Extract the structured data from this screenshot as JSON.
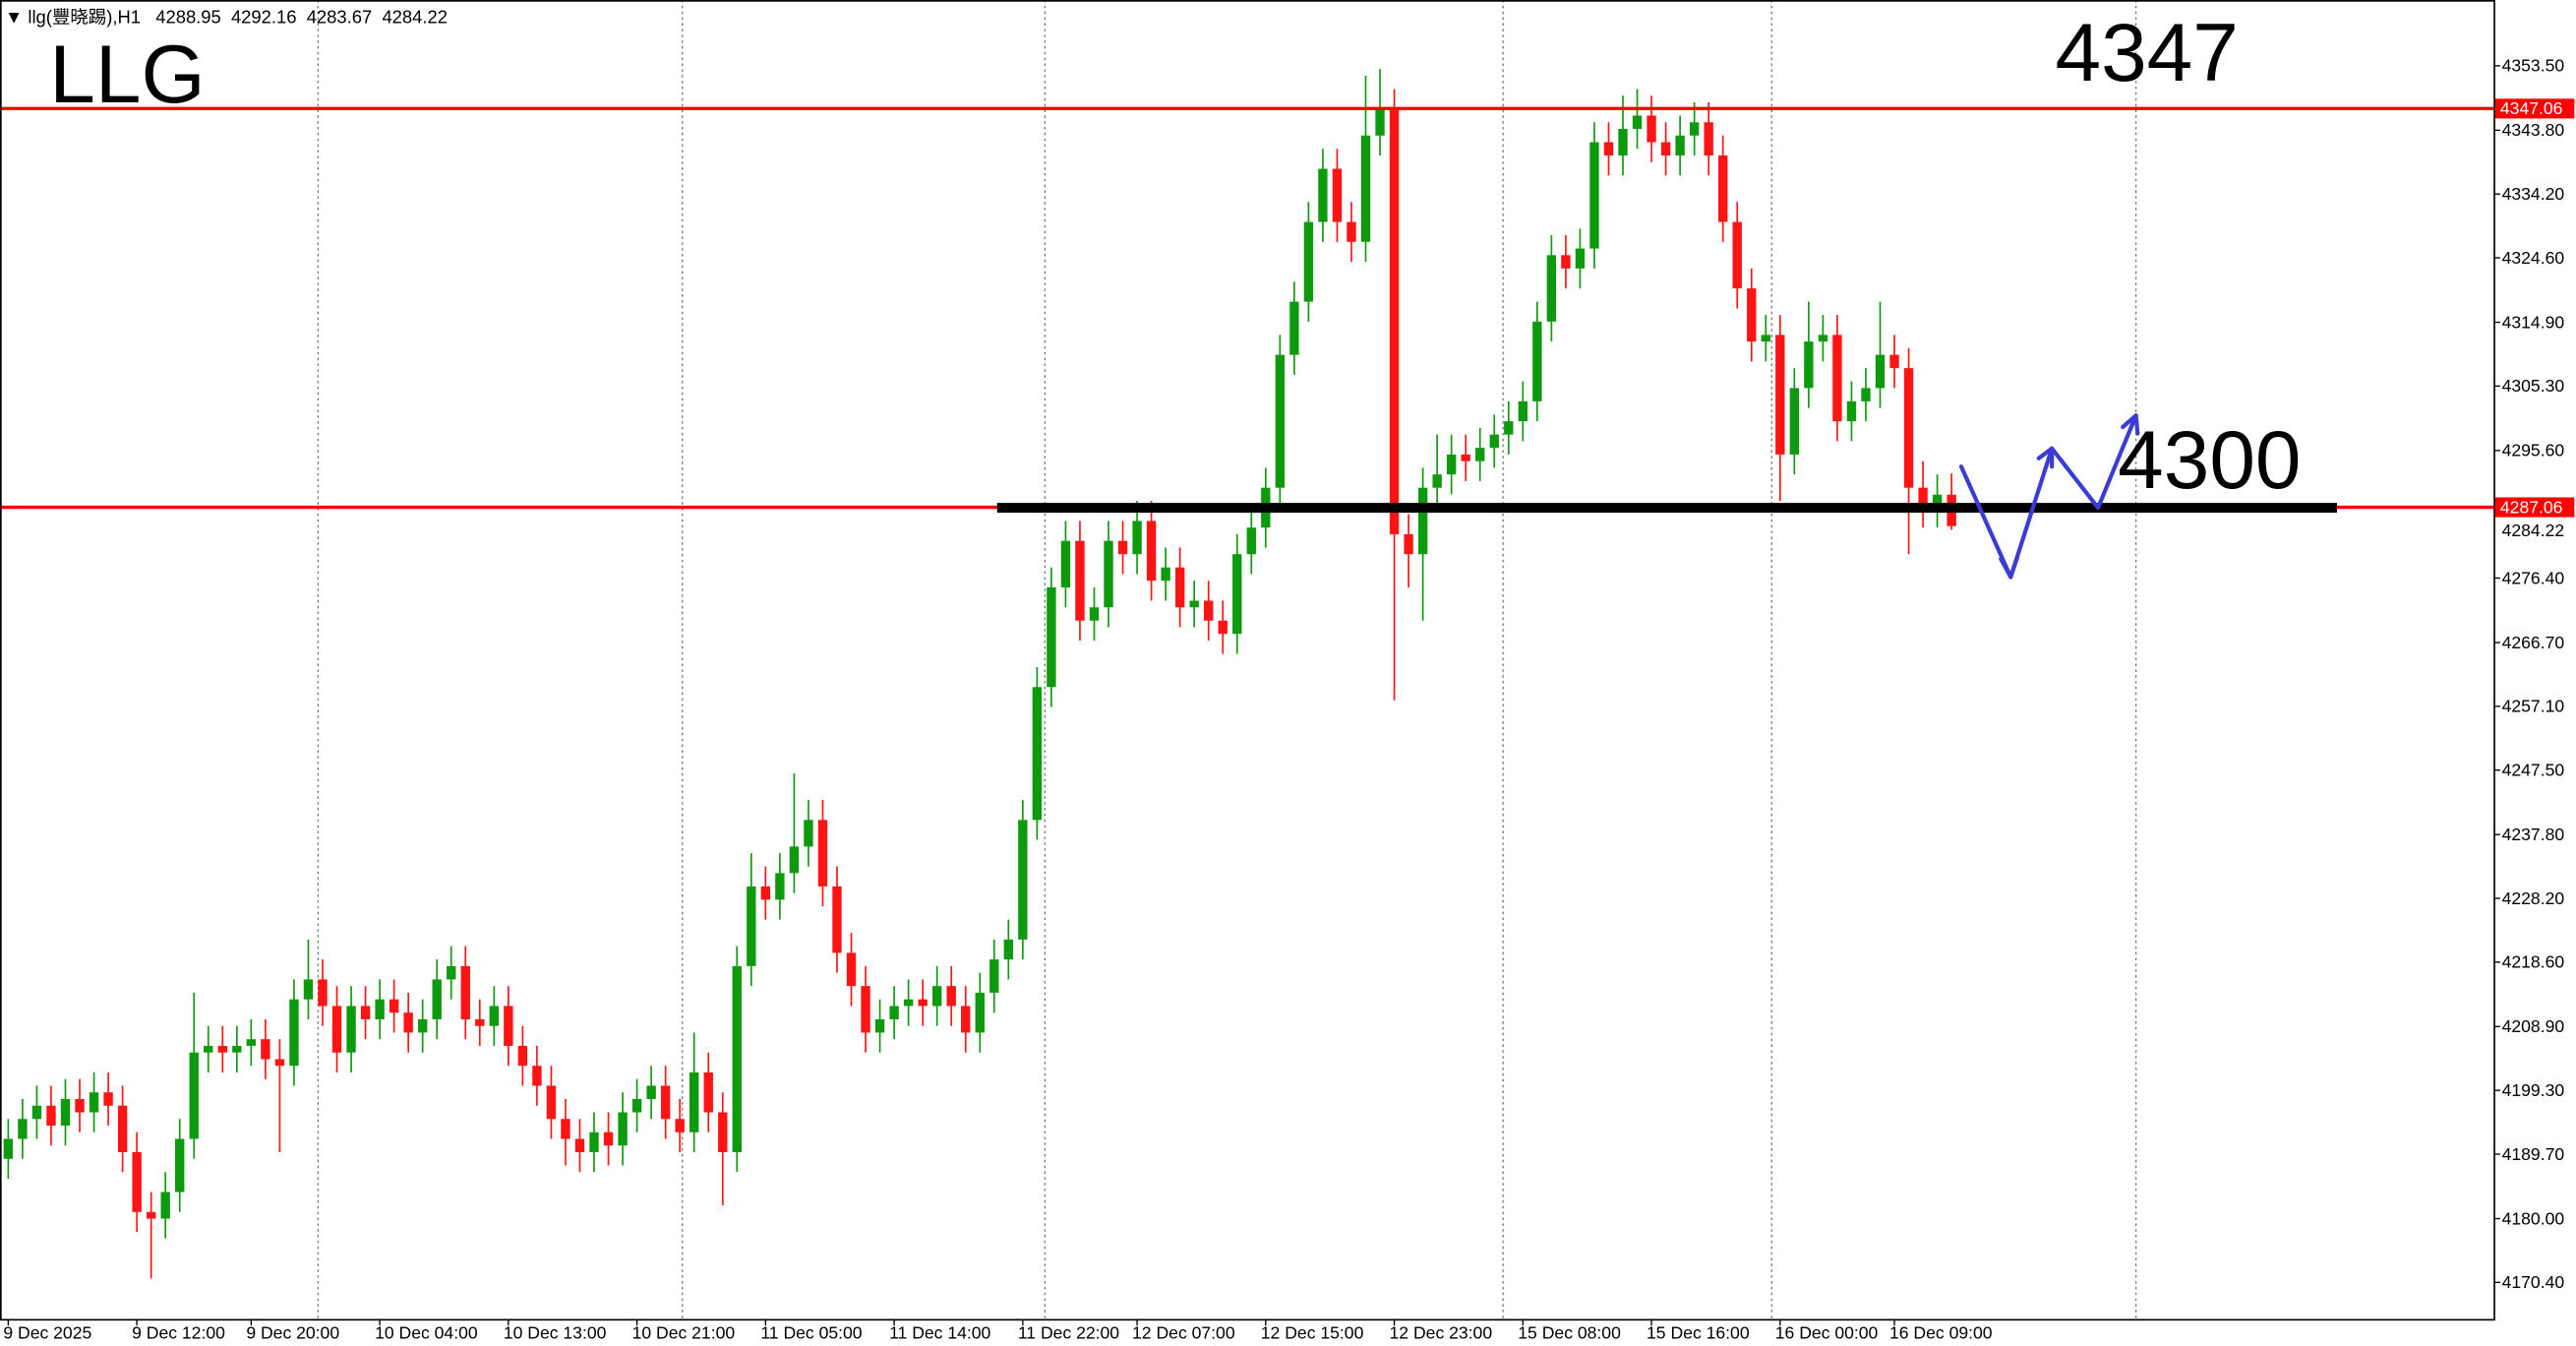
{
  "chart_data": {
    "type": "candlestick",
    "title": "llg(豐晓踢),H1",
    "annotations": [
      "LLG",
      "4347",
      "4300"
    ],
    "hlines": [
      4347.06,
      4287.06
    ],
    "hline_color": "#ff0000",
    "up_color": "#0e9a0e",
    "down_color": "#ff1414",
    "categories": [
      "9 Dec 2025",
      null,
      null,
      null,
      null,
      null,
      null,
      null,
      null,
      "9 Dec 12:00",
      null,
      null,
      null,
      null,
      null,
      null,
      null,
      "9 Dec 20:00",
      null,
      null,
      null,
      null,
      null,
      null,
      null,
      null,
      "10 Dec 04:00",
      null,
      null,
      null,
      null,
      null,
      null,
      null,
      null,
      "10 Dec 13:00",
      null,
      null,
      null,
      null,
      null,
      null,
      null,
      null,
      "10 Dec 21:00",
      null,
      null,
      null,
      null,
      null,
      null,
      null,
      null,
      "11 Dec 05:00",
      null,
      null,
      null,
      null,
      null,
      null,
      null,
      null,
      "11 Dec 14:00",
      null,
      null,
      null,
      null,
      null,
      null,
      null,
      null,
      "11 Dec 22:00",
      null,
      null,
      null,
      null,
      null,
      null,
      null,
      "12 Dec 07:00",
      null,
      null,
      null,
      null,
      null,
      null,
      null,
      null,
      "12 Dec 15:00",
      null,
      null,
      null,
      null,
      null,
      null,
      null,
      null,
      "12 Dec 23:00",
      null,
      null,
      null,
      null,
      null,
      null,
      null,
      null,
      "15 Dec 08:00",
      null,
      null,
      null,
      null,
      null,
      null,
      null,
      null,
      "15 Dec 16:00",
      null,
      null,
      null,
      null,
      null,
      null,
      null,
      null,
      "16 Dec 00:00",
      null,
      null,
      null,
      null,
      null,
      null,
      null,
      "16 Dec 09:00",
      null,
      null,
      null,
      null
    ],
    "open": [
      4189,
      4192,
      4195,
      4197,
      4194,
      4198,
      4196,
      4199,
      4197,
      4190,
      4181,
      4180,
      4184,
      4192,
      4205,
      4206,
      4205,
      4206,
      4207,
      4204,
      4203,
      4213,
      4216,
      4212,
      4205,
      4212,
      4210,
      4213,
      4211,
      4208,
      4210,
      4216,
      4218,
      4210,
      4209,
      4212,
      4206,
      4203,
      4200,
      4195,
      4192,
      4190,
      4193,
      4191,
      4196,
      4198,
      4200,
      4195,
      4193,
      4202,
      4196,
      4190,
      4218,
      4230,
      4228,
      4232,
      4236,
      4240,
      4230,
      4220,
      4215,
      4208,
      4210,
      4212,
      4213,
      4212,
      4215,
      4212,
      4208,
      4214,
      4219,
      4222,
      4240,
      4260,
      4275,
      4282,
      4270,
      4272,
      4282,
      4280,
      4285,
      4276,
      4278,
      4272,
      4273,
      4270,
      4268,
      4280,
      4284,
      4290,
      4310,
      4318,
      4330,
      4338,
      4330,
      4327,
      4343,
      4347,
      4283,
      4280,
      4290,
      4292,
      4295,
      4294,
      4296,
      4298,
      4300,
      4303,
      4315,
      4325,
      4323,
      4326,
      4342,
      4340,
      4344,
      4346,
      4342,
      4340,
      4343,
      4345,
      4340,
      4330,
      4320,
      4312,
      4313,
      4295,
      4305,
      4312,
      4313,
      4300,
      4303,
      4305,
      4310,
      4308,
      4290,
      4287,
      4288.95
    ],
    "high": [
      4195,
      4198,
      4200,
      4200,
      4201,
      4201,
      4202,
      4202,
      4200,
      4193,
      4184,
      4187,
      4195,
      4214,
      4209,
      4209,
      4209,
      4210,
      4210,
      4207,
      4216,
      4222,
      4219,
      4215,
      4215,
      4215,
      4216,
      4216,
      4214,
      4213,
      4219,
      4221,
      4221,
      4213,
      4215,
      4215,
      4209,
      4206,
      4203,
      4198,
      4195,
      4196,
      4196,
      4199,
      4201,
      4203,
      4203,
      4198,
      4208,
      4205,
      4199,
      4221,
      4235,
      4233,
      4235,
      4247,
      4243,
      4243,
      4233,
      4223,
      4218,
      4213,
      4215,
      4216,
      4216,
      4218,
      4218,
      4215,
      4217,
      4222,
      4225,
      4243,
      4263,
      4278,
      4285,
      4285,
      4275,
      4285,
      4285,
      4288,
      4288,
      4281,
      4281,
      4276,
      4276,
      4273,
      4283,
      4287,
      4293,
      4313,
      4321,
      4333,
      4341,
      4341,
      4333,
      4352,
      4353,
      4350,
      4286,
      4293,
      4298,
      4298,
      4298,
      4299,
      4301,
      4303,
      4306,
      4318,
      4328,
      4328,
      4329,
      4345,
      4345,
      4349,
      4350,
      4349,
      4345,
      4346,
      4348,
      4348,
      4343,
      4333,
      4323,
      4316,
      4316,
      4308,
      4318,
      4316,
      4316,
      4306,
      4308,
      4318,
      4313,
      4311,
      4294,
      4292,
      4292.16
    ],
    "low": [
      4186,
      4189,
      4192,
      4191,
      4191,
      4193,
      4193,
      4194,
      4187,
      4178,
      4171,
      4177,
      4181,
      4189,
      4202,
      4202,
      4202,
      4203,
      4201,
      4190,
      4200,
      4210,
      4209,
      4202,
      4202,
      4207,
      4207,
      4208,
      4205,
      4205,
      4207,
      4213,
      4207,
      4206,
      4206,
      4203,
      4200,
      4197,
      4192,
      4188,
      4187,
      4187,
      4188,
      4188,
      4193,
      4195,
      4192,
      4190,
      4190,
      4193,
      4182,
      4187,
      4215,
      4225,
      4225,
      4229,
      4233,
      4227,
      4217,
      4212,
      4205,
      4205,
      4207,
      4209,
      4209,
      4209,
      4209,
      4205,
      4205,
      4211,
      4216,
      4219,
      4237,
      4257,
      4272,
      4267,
      4267,
      4269,
      4277,
      4277,
      4273,
      4273,
      4269,
      4269,
      4267,
      4265,
      4265,
      4277,
      4281,
      4287,
      4307,
      4315,
      4327,
      4327,
      4324,
      4324,
      4340,
      4258,
      4275,
      4270,
      4287,
      4289,
      4291,
      4291,
      4293,
      4295,
      4297,
      4300,
      4312,
      4320,
      4320,
      4323,
      4337,
      4337,
      4341,
      4339,
      4337,
      4337,
      4340,
      4337,
      4327,
      4317,
      4309,
      4309,
      4288,
      4292,
      4302,
      4309,
      4297,
      4297,
      4300,
      4302,
      4305,
      4280,
      4284,
      4284,
      4283.67
    ],
    "close": [
      4192,
      4195,
      4197,
      4194,
      4198,
      4196,
      4199,
      4197,
      4190,
      4181,
      4180,
      4184,
      4192,
      4205,
      4206,
      4205,
      4206,
      4207,
      4204,
      4203,
      4213,
      4216,
      4212,
      4205,
      4212,
      4210,
      4213,
      4211,
      4208,
      4210,
      4216,
      4218,
      4210,
      4209,
      4212,
      4206,
      4203,
      4200,
      4195,
      4192,
      4190,
      4193,
      4191,
      4196,
      4198,
      4200,
      4195,
      4193,
      4202,
      4196,
      4190,
      4218,
      4230,
      4228,
      4232,
      4236,
      4240,
      4230,
      4220,
      4215,
      4208,
      4210,
      4212,
      4213,
      4212,
      4215,
      4212,
      4208,
      4214,
      4219,
      4222,
      4240,
      4260,
      4275,
      4282,
      4270,
      4272,
      4282,
      4280,
      4285,
      4276,
      4278,
      4272,
      4273,
      4270,
      4268,
      4280,
      4284,
      4290,
      4310,
      4318,
      4330,
      4338,
      4330,
      4327,
      4343,
      4347,
      4283,
      4280,
      4290,
      4292,
      4295,
      4294,
      4296,
      4298,
      4300,
      4303,
      4315,
      4325,
      4323,
      4326,
      4342,
      4340,
      4344,
      4346,
      4342,
      4340,
      4343,
      4345,
      4340,
      4330,
      4320,
      4312,
      4313,
      4295,
      4305,
      4312,
      4313,
      4300,
      4303,
      4305,
      4310,
      4308,
      4290,
      4287,
      4288.95,
      4284.22
    ],
    "ylim": [
      4164.9,
      4363.4
    ],
    "yticks": [
      {
        "value": 4353.5,
        "label": "4353.50"
      },
      {
        "value": 4343.8,
        "label": "4343.80"
      },
      {
        "value": 4334.2,
        "label": "4334.20"
      },
      {
        "value": 4324.6,
        "label": "4324.60"
      },
      {
        "value": 4314.9,
        "label": "4314.90"
      },
      {
        "value": 4305.3,
        "label": "4305.30"
      },
      {
        "value": 4295.6,
        "label": "4295.60"
      },
      {
        "value": 4276.4,
        "label": "4276.40"
      },
      {
        "value": 4266.7,
        "label": "4266.70"
      },
      {
        "value": 4257.1,
        "label": "4257.10"
      },
      {
        "value": 4247.5,
        "label": "4247.50"
      },
      {
        "value": 4237.8,
        "label": "4237.80"
      },
      {
        "value": 4228.2,
        "label": "4228.20"
      },
      {
        "value": 4218.6,
        "label": "4218.60"
      },
      {
        "value": 4208.9,
        "label": "4208.90"
      },
      {
        "value": 4199.3,
        "label": "4199.30"
      },
      {
        "value": 4189.7,
        "label": "4189.70"
      },
      {
        "value": 4180,
        "label": "4180.00"
      },
      {
        "value": 4170.4,
        "label": "4170.40"
      }
    ]
  }
}
